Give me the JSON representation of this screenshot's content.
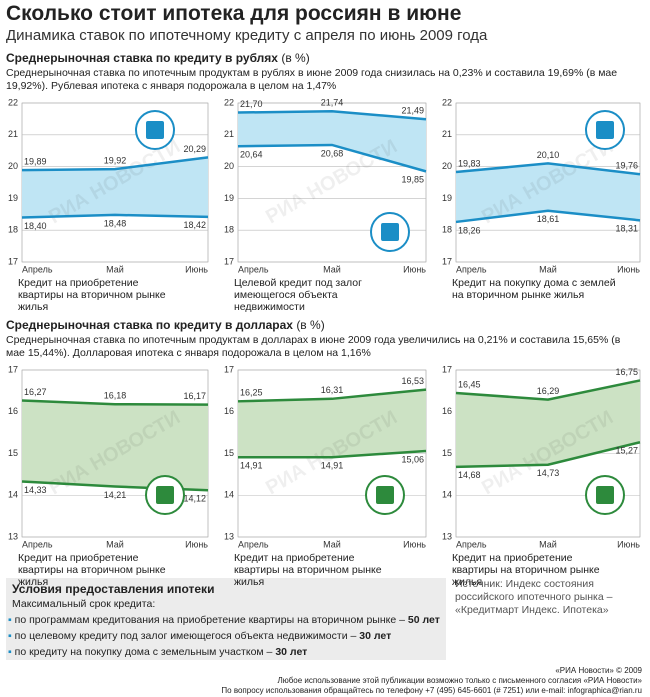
{
  "header": {
    "title": "Сколько стоит ипотека для россиян в июне",
    "subtitle": "Динамика ставок по ипотечному кредиту с апреля по июнь 2009 года"
  },
  "sections": [
    {
      "heading": "Среднерыночная ставка по кредиту в рублях",
      "unit": "(в %)",
      "text": "Среднерыночная ставка по ипотечным продуктам в рублях в июне 2009 года снизилась на 0,23% и составила 19,69% (в мае 19,92%). Рублевая ипотека с января подорожала в целом на 1,47%"
    },
    {
      "heading": "Среднерыночная ставка по кредиту в долларах",
      "unit": "(в %)",
      "text": "Среднерыночная ставка по ипотечным продуктам в долларах в июне 2009 года увеличились на 0,21% и составила 15,65% (в мае 15,44%). Долларовая ипотека с января подорожала в целом на 1,16%"
    }
  ],
  "chart_data": [
    {
      "type": "band",
      "caption": "Кредит на приобретение квартиры на вторичном рынке жилья",
      "watermark": "РИА НОВОСТИ",
      "categories": [
        "Апрель",
        "Май",
        "Июнь"
      ],
      "ylim": [
        17,
        22
      ],
      "yticks": [
        17,
        18,
        19,
        20,
        21,
        22
      ],
      "grid": true,
      "fill": "#bfe5f4",
      "series": [
        {
          "color": "#1b8ec6",
          "values": [
            19.89,
            19.92,
            20.29
          ],
          "value_labels": [
            "19,89",
            "19,92",
            "20,29"
          ]
        },
        {
          "color": "#1b8ec6",
          "values": [
            18.4,
            18.48,
            18.42
          ],
          "value_labels": [
            "18,40",
            "18,48",
            "18,42"
          ]
        }
      ]
    },
    {
      "type": "band",
      "caption": "Целевой кредит под залог имеющегося объекта недвижимости",
      "watermark": "РИА НОВОСТИ",
      "categories": [
        "Апрель",
        "Май",
        "Июнь"
      ],
      "ylim": [
        17,
        22
      ],
      "yticks": [
        17,
        18,
        19,
        20,
        21,
        22
      ],
      "grid": true,
      "fill": "#bfe5f4",
      "series": [
        {
          "color": "#1b8ec6",
          "values": [
            21.7,
            21.74,
            21.49
          ],
          "value_labels": [
            "21,70",
            "21,74",
            "21,49"
          ]
        },
        {
          "color": "#1b8ec6",
          "values": [
            20.64,
            20.68,
            19.85
          ],
          "value_labels": [
            "20,64",
            "20,68",
            "19,85"
          ]
        }
      ]
    },
    {
      "type": "band",
      "caption": "Кредит на покупку дома с землей на вторичном рынке жилья",
      "watermark": "РИА НОВОСТИ",
      "categories": [
        "Апрель",
        "Май",
        "Июнь"
      ],
      "ylim": [
        17,
        22
      ],
      "yticks": [
        17,
        18,
        19,
        20,
        21,
        22
      ],
      "grid": true,
      "fill": "#bfe5f4",
      "series": [
        {
          "color": "#1b8ec6",
          "values": [
            19.83,
            20.1,
            19.76
          ],
          "value_labels": [
            "19,83",
            "20,10",
            "19,76"
          ]
        },
        {
          "color": "#1b8ec6",
          "values": [
            18.26,
            18.61,
            18.31
          ],
          "value_labels": [
            "18,26",
            "18,61",
            "18,31"
          ]
        }
      ]
    },
    {
      "type": "band",
      "caption": "Кредит на приобретение квартиры на вторичном рынке жилья",
      "watermark": "РИА НОВОСТИ",
      "categories": [
        "Апрель",
        "Май",
        "Июнь"
      ],
      "ylim": [
        13,
        17
      ],
      "yticks": [
        13,
        14,
        15,
        16,
        17
      ],
      "grid": true,
      "fill": "#cce2c4",
      "series": [
        {
          "color": "#2d8a3c",
          "values": [
            16.27,
            16.18,
            16.17
          ],
          "value_labels": [
            "16,27",
            "16,18",
            "16,17"
          ]
        },
        {
          "color": "#2d8a3c",
          "values": [
            14.33,
            14.21,
            14.12
          ],
          "value_labels": [
            "14,33",
            "14,21",
            "14,12"
          ]
        }
      ]
    },
    {
      "type": "band",
      "caption": "Кредит на приобретение квартиры на вторичном рынке жилья",
      "watermark": "РИА НОВОСТИ",
      "categories": [
        "Апрель",
        "Май",
        "Июнь"
      ],
      "ylim": [
        13,
        17
      ],
      "yticks": [
        13,
        14,
        15,
        16,
        17
      ],
      "grid": true,
      "fill": "#cce2c4",
      "series": [
        {
          "color": "#2d8a3c",
          "values": [
            16.25,
            16.31,
            16.53
          ],
          "value_labels": [
            "16,25",
            "16,31",
            "16,53"
          ]
        },
        {
          "color": "#2d8a3c",
          "values": [
            14.91,
            14.91,
            15.06
          ],
          "value_labels": [
            "14,91",
            "14,91",
            "15,06"
          ]
        }
      ]
    },
    {
      "type": "band",
      "caption": "Кредит на приобретение квартиры на вторичном рынке жилья",
      "watermark": "РИА НОВОСТИ",
      "categories": [
        "Апрель",
        "Май",
        "Июнь"
      ],
      "ylim": [
        13,
        17
      ],
      "yticks": [
        13,
        14,
        15,
        16,
        17
      ],
      "grid": true,
      "fill": "#cce2c4",
      "series": [
        {
          "color": "#2d8a3c",
          "values": [
            16.45,
            16.29,
            16.75
          ],
          "value_labels": [
            "16,45",
            "16,29",
            "16,75"
          ]
        },
        {
          "color": "#2d8a3c",
          "values": [
            14.68,
            14.73,
            15.27
          ],
          "value_labels": [
            "14,68",
            "14,73",
            "15,27"
          ]
        }
      ]
    }
  ],
  "conditions": {
    "title": "Условия предоставления ипотеки",
    "subtitle": "Максимальный срок кредита:",
    "items": [
      {
        "text": "по программам кредитования на приобретение квартиры на вторичном рынке – ",
        "term": "50 лет"
      },
      {
        "text": "по целевому кредиту под залог имеющегося объекта недвижимости – ",
        "term": "30 лет"
      },
      {
        "text": "по кредиту на покупку дома с земельным участком – ",
        "term": "30 лет"
      }
    ]
  },
  "source": "Источник: Индекс состояния российского ипотечного рынка – «Кредитмарт Индекс. Ипотека»",
  "footer": {
    "copyright": "«РИА Новости» © 2009",
    "notice": "Любое использование этой публикации возможно только с письменного согласия «РИА Новости»",
    "contact": "По вопросу использования обращайтесь по телефону +7 (495) 645-6601 (# 7251) или e-mail: infographica@rian.ru"
  }
}
